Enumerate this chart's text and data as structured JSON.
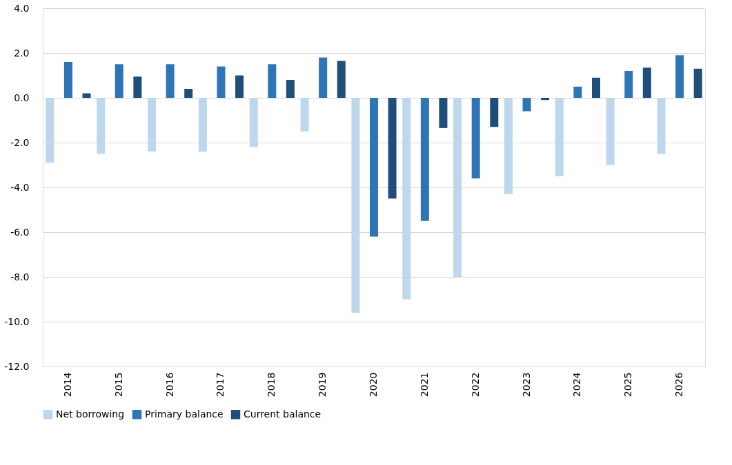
{
  "chart_data": {
    "type": "bar",
    "categories": [
      "2014",
      "2015",
      "2016",
      "2017",
      "2018",
      "2019",
      "2020",
      "2021",
      "2022",
      "2023",
      "2024",
      "2025",
      "2026"
    ],
    "series": [
      {
        "name": "Net borrowing",
        "color": "#bdd7ee",
        "values": [
          -2.9,
          -2.5,
          -2.4,
          -2.4,
          -2.2,
          -1.5,
          -9.6,
          -9.0,
          -8.0,
          -4.3,
          -3.5,
          -3.0,
          -2.5
        ]
      },
      {
        "name": "Primary balance",
        "color": "#2e75b6",
        "values": [
          1.6,
          1.5,
          1.5,
          1.4,
          1.5,
          1.8,
          -6.2,
          -5.5,
          -3.6,
          -0.6,
          0.5,
          1.2,
          1.9
        ]
      },
      {
        "name": "Current balance",
        "color": "#1f4e79",
        "values": [
          0.2,
          0.95,
          0.4,
          1.0,
          0.8,
          1.65,
          -4.5,
          -1.35,
          -1.3,
          -0.1,
          0.9,
          1.35,
          1.3
        ]
      }
    ],
    "ylim": [
      -12,
      4
    ],
    "yticks": [
      {
        "value": 4,
        "label": "4.0"
      },
      {
        "value": 2,
        "label": "2.0"
      },
      {
        "value": 0,
        "label": "0.0"
      },
      {
        "value": -2,
        "label": "-2.0"
      },
      {
        "value": -4,
        "label": "-4.0"
      },
      {
        "value": -6,
        "label": "-6.0"
      },
      {
        "value": -8,
        "label": "-8.0"
      },
      {
        "value": -10,
        "label": "-10.0"
      },
      {
        "value": -12,
        "label": "-12.0"
      }
    ],
    "grid": "y",
    "legend": "bottom"
  }
}
